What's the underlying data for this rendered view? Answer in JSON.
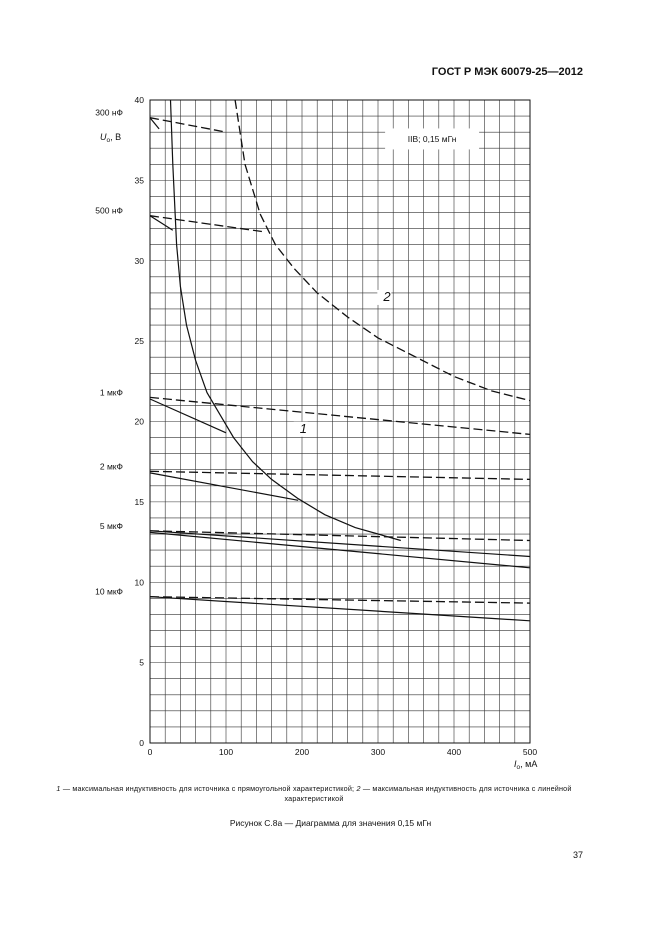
{
  "header": {
    "doc_id": "ГОСТ Р МЭК 60079-25—2012"
  },
  "chart_data": {
    "type": "line",
    "xlabel_symbol": "I",
    "xlabel_subscript": "o",
    "xlabel_unit": ", мА",
    "ylabel_symbol": "U",
    "ylabel_subscript": "o",
    "ylabel_unit": ", В",
    "xlim": [
      0,
      500
    ],
    "ylim": [
      0,
      40
    ],
    "x_ticks": [
      "0",
      "100",
      "200",
      "300",
      "400",
      "500"
    ],
    "y_ticks": [
      "0",
      "5",
      "10",
      "15",
      "20",
      "25",
      "30",
      "35",
      "40"
    ],
    "grid": true,
    "legend_box": "IIB; 0,15 мГн",
    "capacitance_labels": [
      {
        "text": "300 нФ",
        "y": 38.9
      },
      {
        "text": "500 нФ",
        "y": 32.8
      },
      {
        "text": "1 мкФ",
        "y": 21.5
      },
      {
        "text": "2 мкФ",
        "y": 16.9
      },
      {
        "text": "5 мкФ",
        "y": 13.2
      },
      {
        "text": "10 мкФ",
        "y": 9.1
      }
    ],
    "curve_labels": [
      {
        "text": "1",
        "x": 197,
        "y": 19.3
      },
      {
        "text": "2",
        "x": 307,
        "y": 27.5
      }
    ],
    "series": [
      {
        "name": "1",
        "style": "solid",
        "x": [
          27,
          30,
          35,
          40,
          48,
          60,
          75,
          90,
          110,
          135,
          160,
          195,
          230,
          270,
          300,
          330
        ],
        "y": [
          40,
          36,
          31,
          28.4,
          26,
          23.8,
          21.8,
          20.6,
          19,
          17.5,
          16.4,
          15.2,
          14.2,
          13.4,
          13,
          12.6
        ]
      },
      {
        "name": "2",
        "style": "dashed",
        "x": [
          112,
          125,
          145,
          165,
          190,
          220,
          260,
          300,
          350,
          400,
          450,
          500
        ],
        "y": [
          40,
          36,
          32.9,
          31,
          29.5,
          28,
          26.5,
          25.2,
          24,
          22.8,
          21.9,
          21.3
        ]
      },
      {
        "style": "dashed",
        "x": [
          0,
          100
        ],
        "y": [
          38.9,
          38
        ]
      },
      {
        "style": "solid",
        "x": [
          0,
          12
        ],
        "y": [
          38.9,
          38.2
        ]
      },
      {
        "style": "dashed",
        "x": [
          0,
          150
        ],
        "y": [
          32.8,
          31.8
        ]
      },
      {
        "style": "solid",
        "x": [
          0,
          30
        ],
        "y": [
          32.8,
          31.9
        ]
      },
      {
        "style": "dashed",
        "x": [
          0,
          500
        ],
        "y": [
          21.5,
          19.2
        ]
      },
      {
        "style": "solid",
        "x": [
          0,
          100
        ],
        "y": [
          21.4,
          19.3
        ]
      },
      {
        "style": "dashed",
        "x": [
          0,
          500
        ],
        "y": [
          16.9,
          16.4
        ]
      },
      {
        "style": "solid",
        "x": [
          0,
          195
        ],
        "y": [
          16.8,
          15.1
        ]
      },
      {
        "style": "dashed",
        "x": [
          0,
          500
        ],
        "y": [
          13.2,
          12.6
        ]
      },
      {
        "style": "solid",
        "x": [
          0,
          500
        ],
        "y": [
          13.2,
          11.6
        ]
      },
      {
        "style": "solid",
        "x": [
          0,
          500
        ],
        "y": [
          13.1,
          10.9
        ]
      },
      {
        "style": "dashed",
        "x": [
          0,
          500
        ],
        "y": [
          9.1,
          8.7
        ]
      },
      {
        "style": "solid",
        "x": [
          0,
          500
        ],
        "y": [
          9.1,
          7.6
        ]
      }
    ]
  },
  "caption": {
    "n1": "1",
    "t1": " — максимальная индуктивность для источника с прямоугольной характеристикой; ",
    "n2": "2",
    "t2": " — максимальная индуктивность для источника с линейной характеристикой"
  },
  "figure_title": "Рисунок С.8а — Диаграмма для значения 0,15 мГн",
  "page_number": "37"
}
